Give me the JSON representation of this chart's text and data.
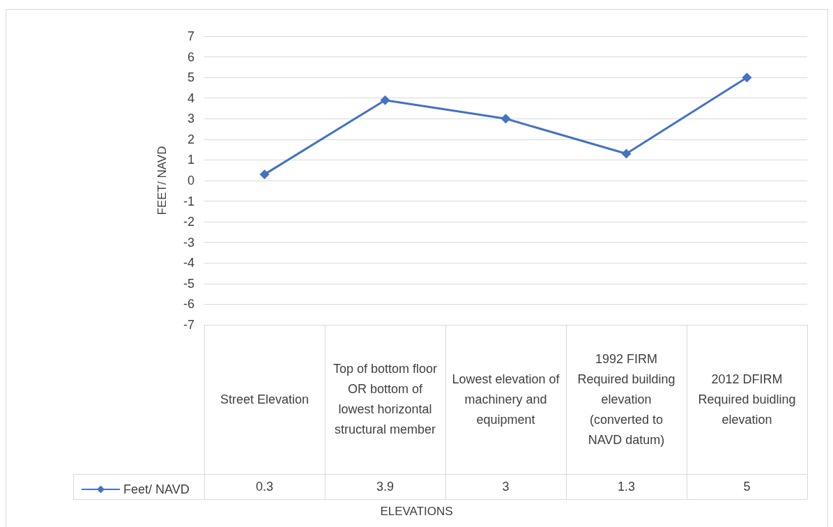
{
  "chart_data": {
    "type": "line",
    "annotations": [
      "ELEVATIONS"
    ],
    "ylabel": "FEET/ NAVD",
    "categories": [
      "Street Elevation",
      "Top of bottom floor OR bottom of lowest horizontal structural member",
      "Lowest elevation of machinery and equipment",
      "1992 FIRM Required building elevation (converted to NAVD datum)",
      "2012 DFIRM Required buidling elevation"
    ],
    "series": [
      {
        "name": "Feet/ NAVD",
        "color": "#4472c4",
        "values": [
          0.3,
          3.9,
          3,
          1.3,
          5
        ]
      }
    ],
    "ylim": [
      -7,
      7
    ],
    "yticks": [
      -7,
      -6,
      -5,
      -4,
      -3,
      -2,
      -1,
      0,
      1,
      2,
      3,
      4,
      5,
      6,
      7
    ],
    "grid": "y",
    "marker": "diamond",
    "line_style": "solid",
    "legend": "bottom left",
    "data_labels": true
  }
}
